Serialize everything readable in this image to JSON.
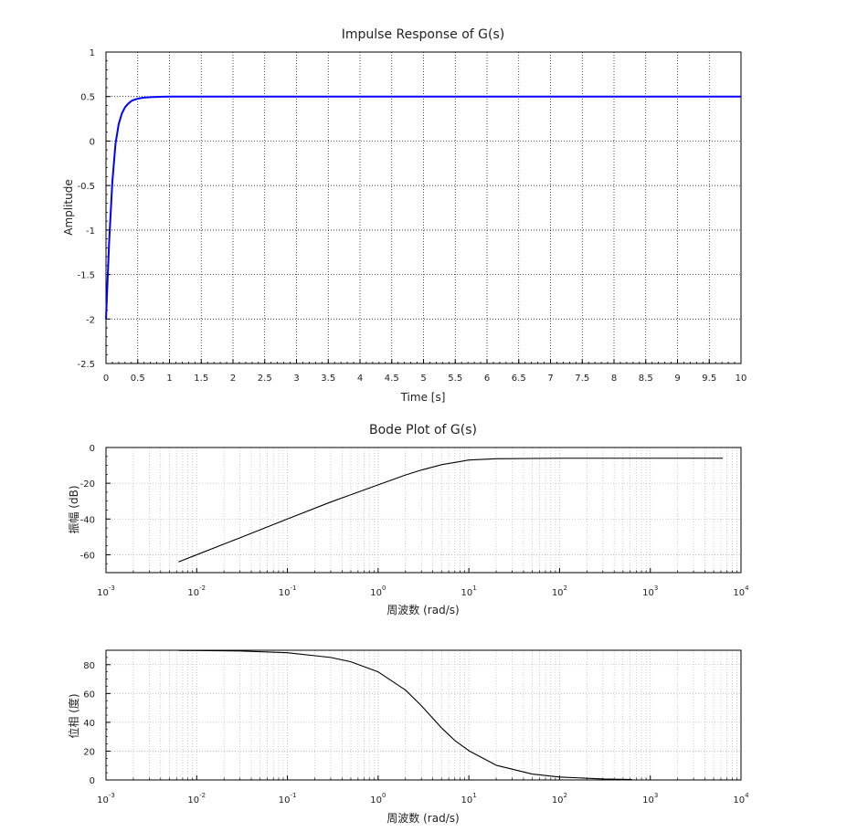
{
  "chart_data": [
    {
      "type": "line",
      "title": "Impulse Response of G(s)",
      "xlabel": "Time [s]",
      "ylabel": "Amplitude",
      "xlim": [
        0,
        10
      ],
      "ylim": [
        -2.5,
        1
      ],
      "xticks": [
        "0",
        "0.5",
        "1",
        "1.5",
        "2",
        "2.5",
        "3",
        "3.5",
        "4",
        "4.5",
        "5",
        "5.5",
        "6",
        "6.5",
        "7",
        "7.5",
        "8",
        "8.5",
        "9",
        "9.5",
        "10"
      ],
      "yticks": [
        "-2.5",
        "-2",
        "-1.5",
        "-1",
        "-0.5",
        "0",
        "0.5",
        "1"
      ],
      "grid": true,
      "color": "#0000ff",
      "series": [
        {
          "x": [
            0,
            0.05,
            0.1,
            0.15,
            0.2,
            0.25,
            0.3,
            0.35,
            0.4,
            0.45,
            0.5,
            0.55,
            0.6,
            0.7,
            0.8,
            0.9,
            1.0,
            1.1,
            1.2,
            1.5,
            2,
            3,
            4,
            5,
            6,
            7,
            8,
            9,
            10
          ],
          "y": [
            -2.0,
            -1.13,
            -0.46,
            -0.03,
            0.19,
            0.31,
            0.38,
            0.42,
            0.45,
            0.465,
            0.475,
            0.483,
            0.488,
            0.493,
            0.496,
            0.498,
            0.499,
            0.4995,
            0.5,
            0.5,
            0.5,
            0.5,
            0.5,
            0.5,
            0.5,
            0.5,
            0.5,
            0.5,
            0.5
          ]
        }
      ]
    },
    {
      "type": "line",
      "title": "Bode Plot of G(s)",
      "xlabel": "周波数 (rad/s)",
      "ylabel": "振幅 (dB)",
      "xscale": "log",
      "xlim": [
        0.001,
        10000
      ],
      "ylim": [
        -70,
        0
      ],
      "xticks": [
        "-3",
        "-2",
        "-1",
        "0",
        "1",
        "2",
        "3",
        "4"
      ],
      "xtick_base": "10",
      "yticks": [
        "0",
        "-20",
        "-40",
        "-60"
      ],
      "grid": true,
      "color": "#000000",
      "series": [
        {
          "x": [
            0.0063,
            0.01,
            0.03,
            0.1,
            0.3,
            1,
            2,
            3,
            5,
            10,
            20,
            100,
            1000,
            6300
          ],
          "y": [
            -64,
            -60,
            -50.5,
            -40,
            -30.5,
            -20.9,
            -15.4,
            -12.6,
            -9.6,
            -7.0,
            -6.3,
            -6.0,
            -6.0,
            -6.0
          ]
        }
      ]
    },
    {
      "type": "line",
      "title": "",
      "xlabel": "周波数 (rad/s)",
      "ylabel": "位相 (度)",
      "xscale": "log",
      "xlim": [
        0.001,
        10000
      ],
      "ylim": [
        0,
        90
      ],
      "xticks": [
        "-3",
        "-2",
        "-1",
        "0",
        "1",
        "2",
        "3",
        "4"
      ],
      "xtick_base": "10",
      "yticks": [
        "0",
        "20",
        "40",
        "60",
        "80"
      ],
      "grid": true,
      "color": "#000000",
      "series": [
        {
          "x": [
            0.0063,
            0.01,
            0.03,
            0.1,
            0.3,
            0.5,
            1,
            2,
            3,
            5,
            7,
            10,
            20,
            50,
            100,
            300,
            630
          ],
          "y": [
            89.9,
            89.8,
            89.5,
            88.3,
            85.0,
            82.0,
            75.0,
            62.4,
            51.5,
            36.1,
            27.4,
            20.3,
            10.2,
            4.1,
            2.0,
            0.7,
            0.3
          ]
        }
      ]
    }
  ]
}
